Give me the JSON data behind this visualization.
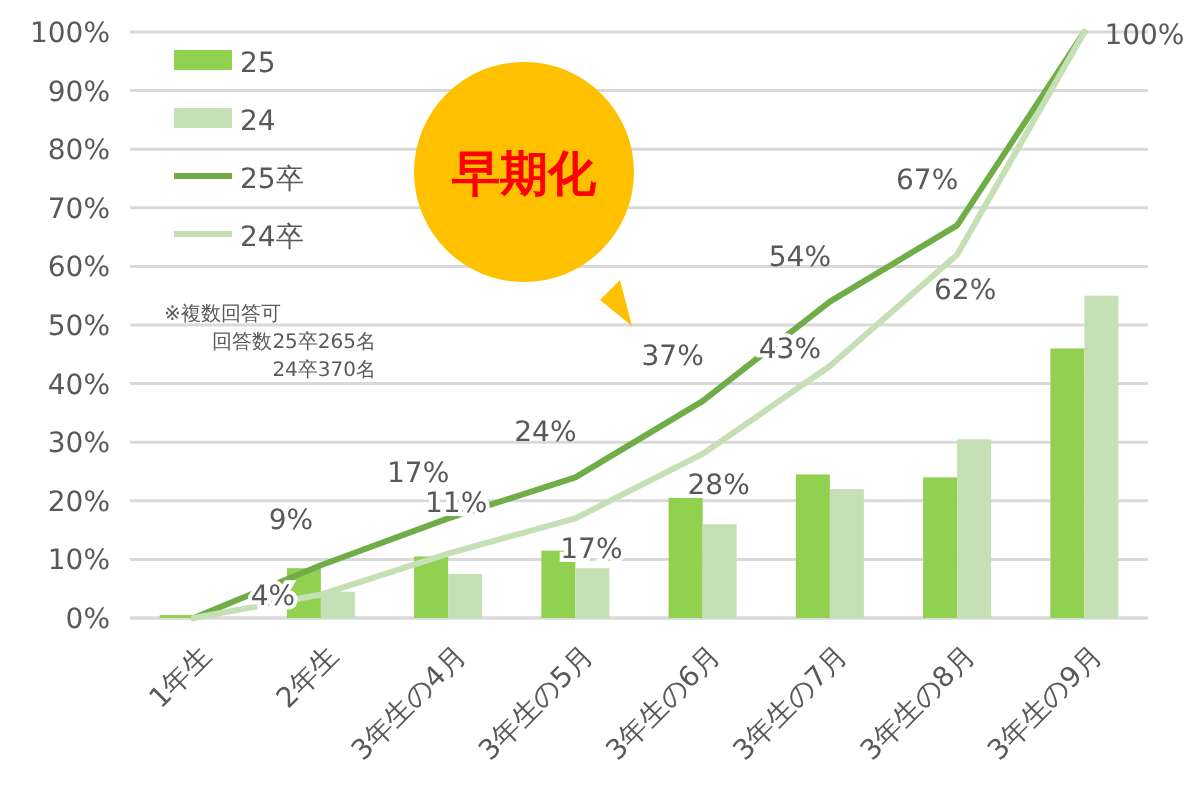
{
  "chart_data": {
    "type": "bar",
    "categories": [
      "1年生",
      "2年生",
      "3年生の4月",
      "3年生の5月",
      "3年生の6月",
      "3年生の7月",
      "3年生の8月",
      "3年生の9月"
    ],
    "series": [
      {
        "name": "25",
        "color": "#92d050",
        "values": [
          0.5,
          8.5,
          10.5,
          11.5,
          20.5,
          24.5,
          24,
          46
        ]
      },
      {
        "name": "24",
        "color": "#c5e0b4",
        "values": [
          0,
          4.5,
          7.5,
          8.5,
          16,
          22,
          30.5,
          55
        ]
      },
      {
        "name": "25卒",
        "type": "line",
        "color": "#70ad47",
        "values": [
          0,
          9,
          17,
          24,
          37,
          54,
          67,
          100
        ],
        "value_labels": [
          null,
          "9%",
          "17%",
          "24%",
          "37%",
          "54%",
          "67%",
          "100%"
        ]
      },
      {
        "name": "24卒",
        "type": "line",
        "color": "#c5e0b4",
        "values": [
          0,
          4,
          11,
          17,
          28,
          43,
          62,
          100
        ],
        "value_labels": [
          null,
          "4%",
          "11%",
          "17%",
          "28%",
          "43%",
          "62%",
          null
        ]
      }
    ],
    "ylim": [
      0,
      100
    ],
    "yticks": [
      {
        "value": 0,
        "label": "0%"
      },
      {
        "value": 10,
        "label": "10%"
      },
      {
        "value": 20,
        "label": "20%"
      },
      {
        "value": 30,
        "label": "30%"
      },
      {
        "value": 40,
        "label": "40%"
      },
      {
        "value": 50,
        "label": "50%"
      },
      {
        "value": 60,
        "label": "60%"
      },
      {
        "value": 70,
        "label": "70%"
      },
      {
        "value": 80,
        "label": "80%"
      },
      {
        "value": 90,
        "label": "90%"
      },
      {
        "value": 100,
        "label": "100%"
      }
    ],
    "grid": "y",
    "legend": "top left",
    "line_style": "solid",
    "annotations": [
      "早期化",
      "※複数回答可",
      "回答数25卒265名",
      "24卒370名"
    ]
  }
}
